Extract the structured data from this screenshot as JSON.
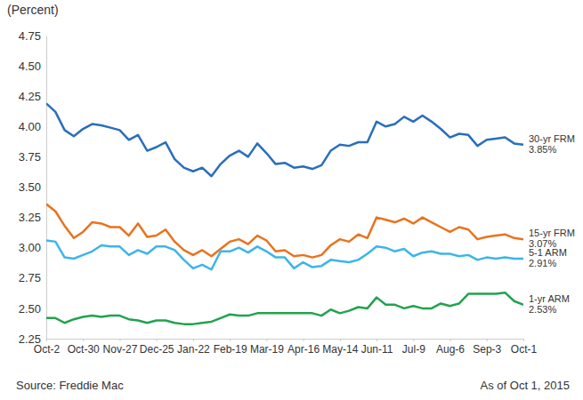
{
  "chart_data": {
    "type": "line",
    "y_label": "(Percent)",
    "source": "Source: Freddie Mac",
    "as_of": "As of Oct 1, 2015",
    "categories": [
      "Oct-2",
      null,
      null,
      null,
      "Oct-30",
      null,
      null,
      null,
      "Nov-27",
      null,
      null,
      null,
      "Dec-25",
      null,
      null,
      null,
      "Jan-22",
      null,
      null,
      null,
      "Feb-19",
      null,
      null,
      null,
      "Mar-19",
      null,
      null,
      null,
      "Apr-16",
      null,
      null,
      null,
      "May-14",
      null,
      null,
      null,
      "Jun-11",
      null,
      null,
      null,
      "Jul-9",
      null,
      null,
      null,
      "Aug-6",
      null,
      null,
      null,
      "Sep-3",
      null,
      null,
      null,
      "Oct-1"
    ],
    "ylim": [
      2.25,
      4.75
    ],
    "yticks": [
      2.25,
      {
        "value": 2.5,
        "label": "2.50"
      },
      2.75,
      {
        "value": 3,
        "label": "3.00"
      },
      3.25,
      {
        "value": 3.5,
        "label": "3.50"
      },
      3.75,
      {
        "value": 4,
        "label": "4.00"
      },
      4.25,
      {
        "value": 4.5,
        "label": "4.50"
      },
      4.75
    ],
    "grid": false,
    "series": [
      {
        "name": "30-yr FRM",
        "color": "#2a6ebb",
        "values": [
          4.19,
          4.12,
          3.97,
          3.92,
          3.98,
          4.02,
          4.01,
          3.99,
          3.97,
          3.89,
          3.93,
          3.8,
          3.83,
          3.87,
          3.73,
          3.66,
          3.63,
          3.66,
          3.59,
          3.69,
          3.76,
          3.8,
          3.75,
          3.86,
          3.78,
          3.69,
          3.7,
          3.66,
          3.67,
          3.65,
          3.68,
          3.8,
          3.85,
          3.84,
          3.87,
          3.87,
          4.04,
          4.0,
          4.02,
          4.08,
          4.04,
          4.09,
          4.04,
          3.98,
          3.91,
          3.94,
          3.93,
          3.84,
          3.89,
          3.9,
          3.91,
          3.86,
          3.85
        ],
        "value_labels": [
          null,
          null,
          null,
          null,
          null,
          null,
          null,
          null,
          null,
          null,
          null,
          null,
          null,
          null,
          null,
          null,
          null,
          null,
          null,
          null,
          null,
          null,
          null,
          null,
          null,
          null,
          null,
          null,
          null,
          null,
          null,
          null,
          null,
          null,
          null,
          null,
          null,
          null,
          null,
          null,
          null,
          null,
          null,
          null,
          null,
          null,
          null,
          null,
          null,
          null,
          null,
          null,
          "3.85%"
        ]
      },
      {
        "name": "15-yr FRM",
        "color": "#e8731e",
        "values": [
          3.36,
          3.3,
          3.18,
          3.08,
          3.13,
          3.21,
          3.2,
          3.17,
          3.17,
          3.1,
          3.2,
          3.09,
          3.1,
          3.15,
          3.05,
          2.98,
          2.94,
          2.98,
          2.93,
          2.99,
          3.05,
          3.07,
          3.03,
          3.1,
          3.06,
          2.97,
          2.98,
          2.93,
          2.94,
          2.92,
          2.94,
          3.02,
          3.07,
          3.05,
          3.11,
          3.08,
          3.25,
          3.23,
          3.21,
          3.24,
          3.2,
          3.25,
          3.21,
          3.17,
          3.13,
          3.17,
          3.15,
          3.07,
          3.09,
          3.1,
          3.11,
          3.08,
          3.07
        ],
        "value_labels": [
          null,
          null,
          null,
          null,
          null,
          null,
          null,
          null,
          null,
          null,
          null,
          null,
          null,
          null,
          null,
          null,
          null,
          null,
          null,
          null,
          null,
          null,
          null,
          null,
          null,
          null,
          null,
          null,
          null,
          null,
          null,
          null,
          null,
          null,
          null,
          null,
          null,
          null,
          null,
          null,
          null,
          null,
          null,
          null,
          null,
          null,
          null,
          null,
          null,
          null,
          null,
          null,
          "3.07%"
        ]
      },
      {
        "name": "5-1 ARM",
        "color": "#3db5e8",
        "values": [
          3.06,
          3.05,
          2.92,
          2.91,
          2.94,
          2.97,
          3.02,
          3.01,
          3.01,
          2.94,
          2.98,
          2.95,
          3.01,
          3.01,
          2.98,
          2.9,
          2.83,
          2.86,
          2.82,
          2.97,
          2.97,
          3.0,
          2.96,
          3.01,
          2.97,
          2.92,
          2.92,
          2.83,
          2.88,
          2.84,
          2.85,
          2.9,
          2.89,
          2.88,
          2.9,
          2.95,
          3.01,
          3.0,
          2.97,
          2.99,
          2.93,
          2.96,
          2.97,
          2.95,
          2.95,
          2.93,
          2.94,
          2.9,
          2.92,
          2.91,
          2.92,
          2.91,
          2.91
        ],
        "value_labels": [
          null,
          null,
          null,
          null,
          null,
          null,
          null,
          null,
          null,
          null,
          null,
          null,
          null,
          null,
          null,
          null,
          null,
          null,
          null,
          null,
          null,
          null,
          null,
          null,
          null,
          null,
          null,
          null,
          null,
          null,
          null,
          null,
          null,
          null,
          null,
          null,
          null,
          null,
          null,
          null,
          null,
          null,
          null,
          null,
          null,
          null,
          null,
          null,
          null,
          null,
          null,
          null,
          "2.91%"
        ]
      },
      {
        "name": "1-yr ARM",
        "color": "#22a24f",
        "values": [
          2.42,
          2.42,
          2.38,
          2.41,
          2.43,
          2.44,
          2.43,
          2.44,
          2.44,
          2.41,
          2.4,
          2.38,
          2.4,
          2.4,
          2.38,
          2.37,
          2.37,
          2.38,
          2.39,
          2.42,
          2.45,
          2.44,
          2.44,
          2.46,
          2.46,
          2.46,
          2.46,
          2.46,
          2.46,
          2.46,
          2.44,
          2.49,
          2.46,
          2.48,
          2.51,
          2.5,
          2.59,
          2.53,
          2.53,
          2.5,
          2.52,
          2.5,
          2.5,
          2.54,
          2.52,
          2.54,
          2.62,
          2.62,
          2.62,
          2.62,
          2.63,
          2.56,
          2.53
        ],
        "value_labels": [
          null,
          null,
          null,
          null,
          null,
          null,
          null,
          null,
          null,
          null,
          null,
          null,
          null,
          null,
          null,
          null,
          null,
          null,
          null,
          null,
          null,
          null,
          null,
          null,
          null,
          null,
          null,
          null,
          null,
          null,
          null,
          null,
          null,
          null,
          null,
          null,
          null,
          null,
          null,
          null,
          null,
          null,
          null,
          null,
          null,
          null,
          null,
          null,
          null,
          null,
          null,
          null,
          "2.53%"
        ]
      }
    ]
  }
}
